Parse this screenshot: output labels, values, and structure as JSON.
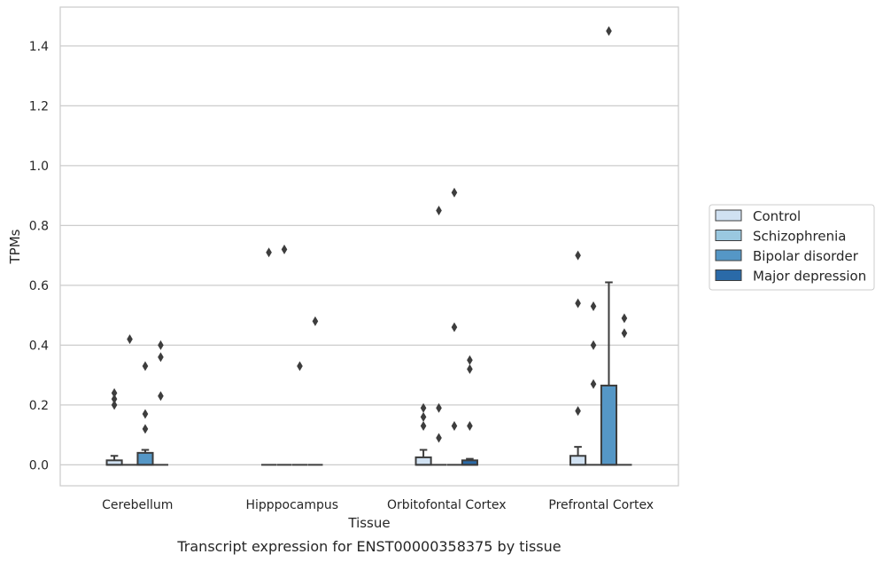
{
  "caption": "Transcript expression for ENST00000358375 by tissue",
  "chart_data": {
    "type": "box",
    "xlabel": "Tissue",
    "ylabel": "TPMs",
    "ylim": [
      -0.07,
      1.53
    ],
    "yticks": [
      "0.0",
      "0.2",
      "0.4",
      "0.6",
      "0.8",
      "1.0",
      "1.2",
      "1.4"
    ],
    "grid": "horizontal",
    "legend_position": "right",
    "categories": [
      "Cerebellum",
      "Hipppocampus",
      "Orbitofontal Cortex",
      "Prefrontal Cortex"
    ],
    "series": [
      {
        "name": "Control",
        "color": "#d0e1f2",
        "boxes": [
          {
            "q1": 0.0,
            "median": 0.0,
            "q3": 0.015,
            "whisker_low": 0.0,
            "whisker_high": 0.03,
            "outliers": [
              0.2,
              0.22,
              0.24
            ]
          },
          {
            "q1": 0.0,
            "median": 0.0,
            "q3": 0.0,
            "whisker_low": 0.0,
            "whisker_high": 0.0,
            "outliers": [
              0.71
            ]
          },
          {
            "q1": 0.0,
            "median": 0.0,
            "q3": 0.025,
            "whisker_low": 0.0,
            "whisker_high": 0.05,
            "outliers": [
              0.13,
              0.16,
              0.19
            ]
          },
          {
            "q1": 0.0,
            "median": 0.0,
            "q3": 0.03,
            "whisker_low": 0.0,
            "whisker_high": 0.06,
            "outliers": [
              0.18,
              0.54,
              0.7
            ]
          }
        ]
      },
      {
        "name": "Schizophrenia",
        "color": "#9ac8e0",
        "boxes": [
          {
            "q1": 0.0,
            "median": 0.0,
            "q3": 0.0,
            "whisker_low": 0.0,
            "whisker_high": 0.0,
            "outliers": [
              0.42
            ]
          },
          {
            "q1": 0.0,
            "median": 0.0,
            "q3": 0.0,
            "whisker_low": 0.0,
            "whisker_high": 0.0,
            "outliers": [
              0.72
            ]
          },
          {
            "q1": 0.0,
            "median": 0.0,
            "q3": 0.0,
            "whisker_low": 0.0,
            "whisker_high": 0.0,
            "outliers": [
              0.09,
              0.19,
              0.85
            ]
          },
          {
            "q1": 0.0,
            "median": 0.0,
            "q3": 0.0,
            "whisker_low": 0.0,
            "whisker_high": 0.0,
            "outliers": [
              0.27,
              0.4,
              0.53
            ]
          }
        ]
      },
      {
        "name": "Bipolar disorder",
        "color": "#5597c6",
        "boxes": [
          {
            "q1": 0.0,
            "median": 0.0,
            "q3": 0.04,
            "whisker_low": 0.0,
            "whisker_high": 0.05,
            "outliers": [
              0.12,
              0.17,
              0.33
            ]
          },
          {
            "q1": 0.0,
            "median": 0.0,
            "q3": 0.0,
            "whisker_low": 0.0,
            "whisker_high": 0.0,
            "outliers": [
              0.33
            ]
          },
          {
            "q1": 0.0,
            "median": 0.0,
            "q3": 0.0,
            "whisker_low": 0.0,
            "whisker_high": 0.0,
            "outliers": [
              0.13,
              0.46,
              0.91
            ]
          },
          {
            "q1": 0.0,
            "median": 0.0,
            "q3": 0.265,
            "whisker_low": 0.0,
            "whisker_high": 0.61,
            "outliers": [
              1.45
            ]
          }
        ]
      },
      {
        "name": "Major depression",
        "color": "#2a6aa8",
        "boxes": [
          {
            "q1": 0.0,
            "median": 0.0,
            "q3": 0.0,
            "whisker_low": 0.0,
            "whisker_high": 0.0,
            "outliers": [
              0.23,
              0.36,
              0.4
            ]
          },
          {
            "q1": 0.0,
            "median": 0.0,
            "q3": 0.0,
            "whisker_low": 0.0,
            "whisker_high": 0.0,
            "outliers": [
              0.48
            ]
          },
          {
            "q1": 0.0,
            "median": 0.0,
            "q3": 0.015,
            "whisker_low": 0.0,
            "whisker_high": 0.02,
            "outliers": [
              0.13,
              0.32,
              0.35
            ]
          },
          {
            "q1": 0.0,
            "median": 0.0,
            "q3": 0.0,
            "whisker_low": 0.0,
            "whisker_high": 0.0,
            "outliers": [
              0.44,
              0.49
            ]
          }
        ]
      }
    ]
  }
}
